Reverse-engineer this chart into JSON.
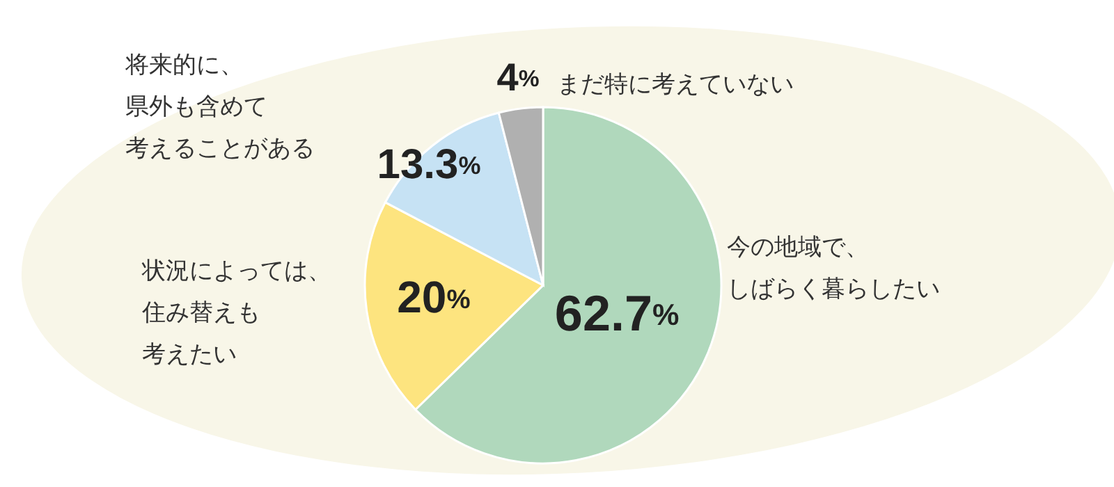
{
  "chart_data": {
    "type": "pie",
    "categories": [
      "今の地域で、しばらく暮らしたい",
      "状況によっては、住み替えも考えたい",
      "将来的に、県外も含めて考えることがある",
      "まだ特に考えていない"
    ],
    "values": [
      62.7,
      20,
      13.3,
      4
    ],
    "value_labels": [
      "62.7%",
      "20%",
      "13.3%",
      "4%"
    ],
    "colors": [
      "#b0d8bc",
      "#fde47f",
      "#c6e2f4",
      "#b0b0b0"
    ]
  }
}
